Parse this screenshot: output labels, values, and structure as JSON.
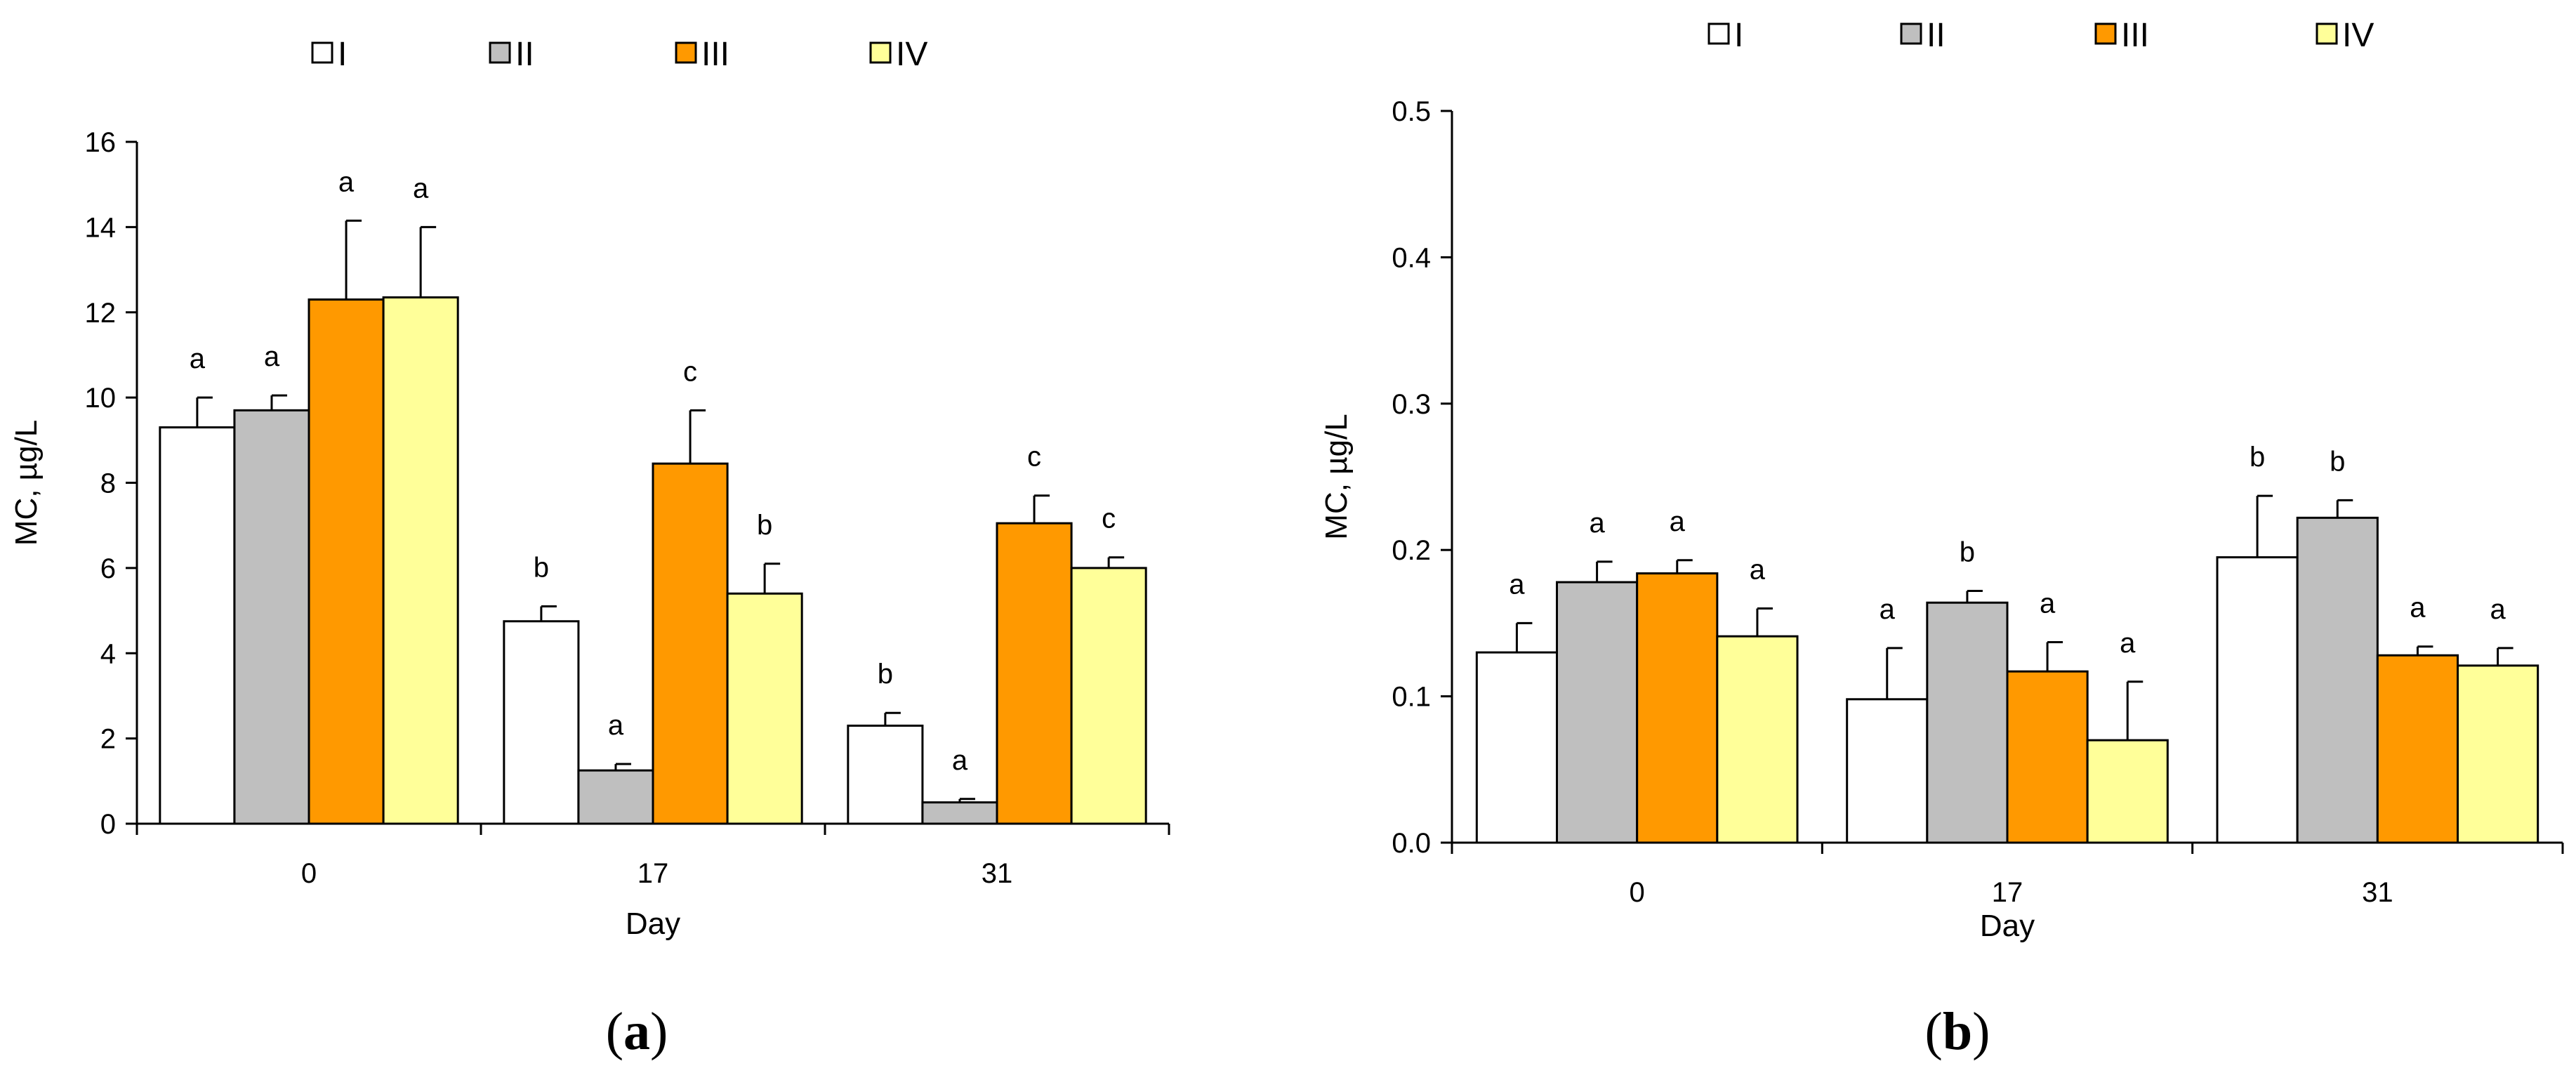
{
  "series_colors": {
    "I": "#ffffff",
    "II": "#bfbfbf",
    "III": "#ff9900",
    "IV": "#ffff99"
  },
  "chart_data": [
    {
      "type": "bar",
      "panel_label": "a",
      "xlabel": "Day",
      "ylabel": "MC, µg/L",
      "categories": [
        "0",
        "17",
        "31"
      ],
      "ylim": [
        0,
        16
      ],
      "yticks": [
        "0",
        "2",
        "4",
        "6",
        "8",
        "10",
        "12",
        "14",
        "16"
      ],
      "legend": [
        "I",
        "II",
        "III",
        "IV"
      ],
      "legend_position": "top-center",
      "series": [
        {
          "name": "I",
          "values": [
            9.3,
            4.75,
            2.3
          ],
          "errors": [
            0.7,
            0.35,
            0.3
          ],
          "labels": [
            "a",
            "b",
            "b"
          ]
        },
        {
          "name": "II",
          "values": [
            9.7,
            1.25,
            0.5
          ],
          "errors": [
            0.35,
            0.15,
            0.08
          ],
          "labels": [
            "a",
            "a",
            "a"
          ]
        },
        {
          "name": "III",
          "values": [
            12.3,
            8.45,
            7.05
          ],
          "errors": [
            1.85,
            1.25,
            0.65
          ],
          "labels": [
            "a",
            "c",
            "c"
          ]
        },
        {
          "name": "IV",
          "values": [
            12.35,
            5.4,
            6.0
          ],
          "errors": [
            1.65,
            0.7,
            0.25
          ],
          "labels": [
            "a",
            "b",
            "c"
          ]
        }
      ]
    },
    {
      "type": "bar",
      "panel_label": "b",
      "xlabel": "Day",
      "ylabel": "MC, µg/L",
      "categories": [
        "0",
        "17",
        "31"
      ],
      "ylim": [
        0,
        0.5
      ],
      "yticks": [
        "0.0",
        "0.1",
        "0.2",
        "0.3",
        "0.4",
        "0.5"
      ],
      "legend": [
        "I",
        "II",
        "III",
        "IV"
      ],
      "legend_position": "top-center",
      "series": [
        {
          "name": "I",
          "values": [
            0.13,
            0.098,
            0.195
          ],
          "errors": [
            0.02,
            0.035,
            0.042
          ],
          "labels": [
            "a",
            "a",
            "b"
          ]
        },
        {
          "name": "II",
          "values": [
            0.178,
            0.164,
            0.222
          ],
          "errors": [
            0.014,
            0.008,
            0.012
          ],
          "labels": [
            "a",
            "b",
            "b"
          ]
        },
        {
          "name": "III",
          "values": [
            0.184,
            0.117,
            0.128
          ],
          "errors": [
            0.009,
            0.02,
            0.006
          ],
          "labels": [
            "a",
            "a",
            "a"
          ]
        },
        {
          "name": "IV",
          "values": [
            0.141,
            0.07,
            0.121
          ],
          "errors": [
            0.019,
            0.04,
            0.012
          ],
          "labels": [
            "a",
            "a",
            "a"
          ]
        }
      ]
    }
  ]
}
